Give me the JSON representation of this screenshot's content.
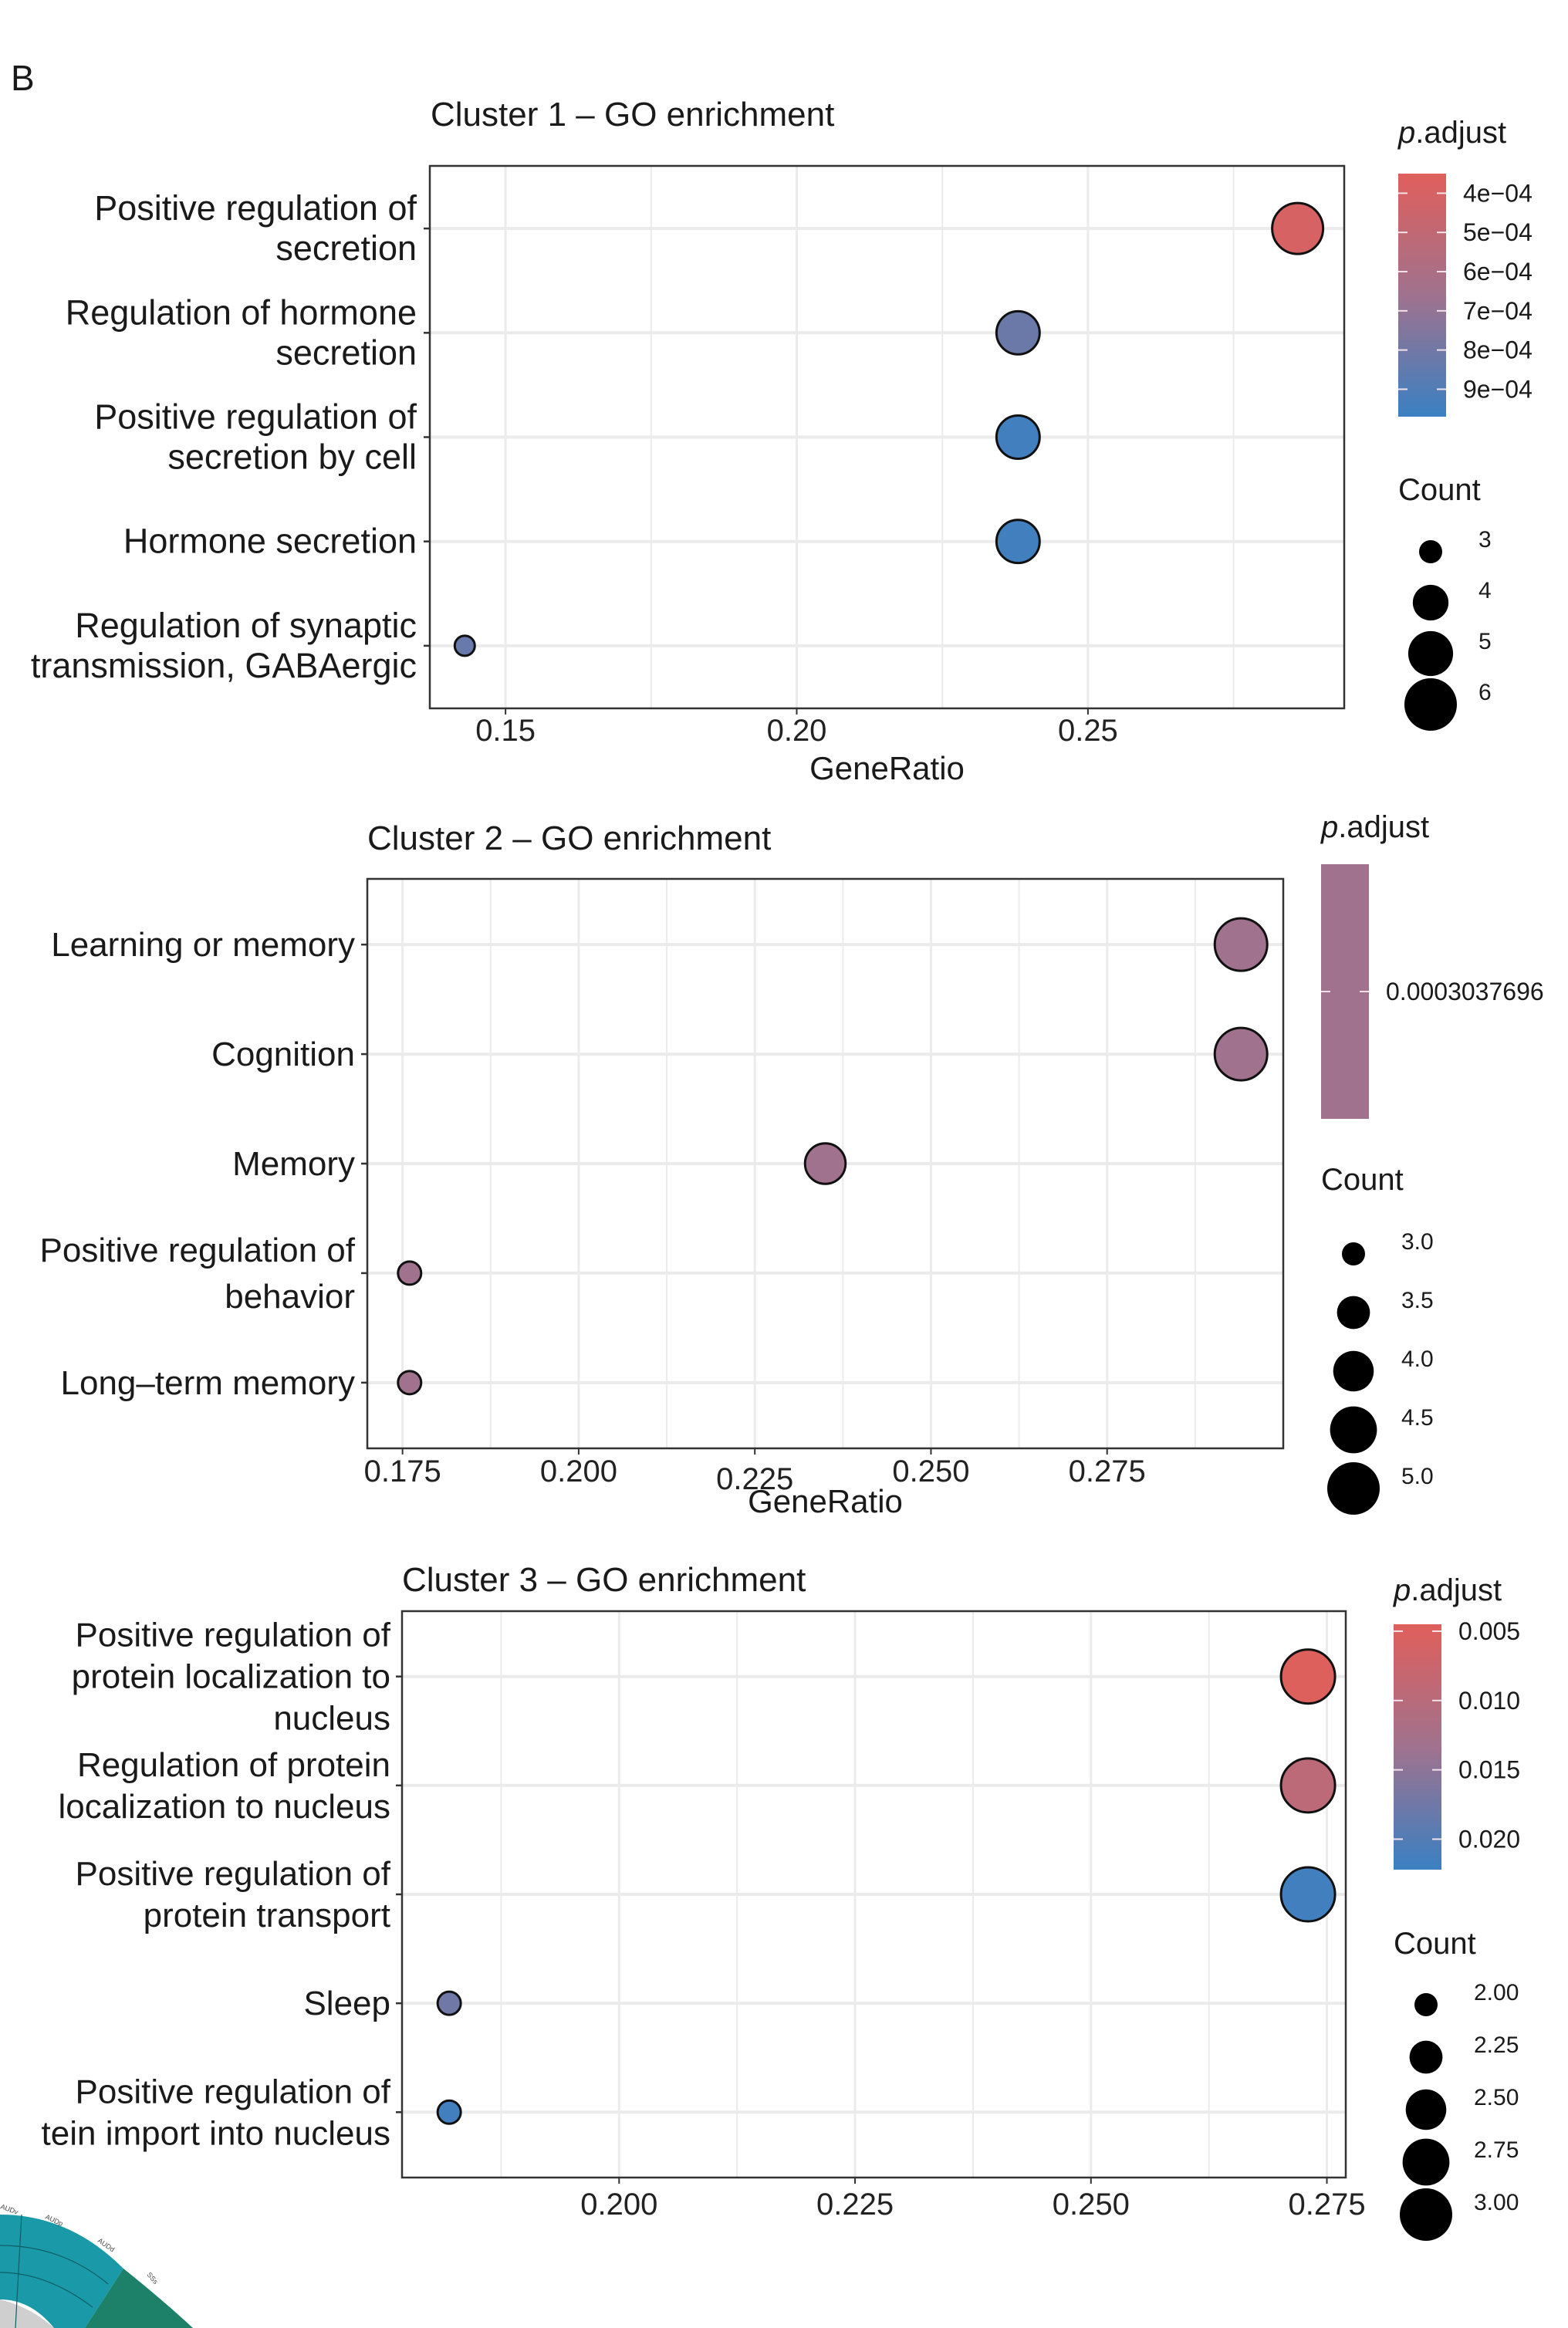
{
  "panel_label": "B",
  "chart_data": [
    {
      "type": "scatter",
      "subtype": "dotplot",
      "title": "Cluster 1 – GO enrichment",
      "xlabel": "GeneRatio",
      "ylabel": "",
      "xlim": [
        0.137,
        0.294
      ],
      "xticks": [
        0.15,
        0.2,
        0.25
      ],
      "xtick_labels": [
        "0.15",
        "0.20",
        "0.25"
      ],
      "grid": true,
      "categories": [
        "Positive regulation of\nsecretion",
        "Regulation of hormone\nsecretion",
        "Positive regulation of\nsecretion by cell",
        "Hormone secretion",
        "Regulation of synaptic\ntransmission, GABAergic"
      ],
      "points": [
        {
          "term": "Positive regulation of secretion",
          "gene_ratio": 0.286,
          "count": 6,
          "p_adjust": 0.0004
        },
        {
          "term": "Regulation of hormone secretion",
          "gene_ratio": 0.238,
          "count": 5,
          "p_adjust": 0.00082
        },
        {
          "term": "Positive regulation of secretion by cell",
          "gene_ratio": 0.238,
          "count": 5,
          "p_adjust": 0.00095
        },
        {
          "term": "Hormone secretion",
          "gene_ratio": 0.238,
          "count": 5,
          "p_adjust": 0.00095
        },
        {
          "term": "Regulation of synaptic transmission, GABAergic",
          "gene_ratio": 0.143,
          "count": 3,
          "p_adjust": 0.00083
        }
      ],
      "color_legend": {
        "title_italic": "p",
        "title_rest": ".adjust",
        "range": [
          0.00035,
          0.00097
        ],
        "ticks": [
          0.0004,
          0.0005,
          0.0006,
          0.0007,
          0.0008,
          0.0009
        ],
        "tick_labels": [
          "4e−04",
          "5e−04",
          "6e−04",
          "7e−04",
          "8e−04",
          "9e−04"
        ],
        "low_color": "#e05f5b",
        "high_color": "#3a80c2"
      },
      "size_legend": {
        "title": "Count",
        "values": [
          3,
          4,
          5,
          6
        ],
        "labels": [
          "3",
          "4",
          "5",
          "6"
        ],
        "range": [
          3,
          6
        ]
      },
      "legend_position": "right"
    },
    {
      "type": "scatter",
      "subtype": "dotplot",
      "title": "Cluster 2 – GO enrichment",
      "xlabel": "GeneRatio",
      "ylabel": "",
      "xlim": [
        0.17,
        0.3
      ],
      "xticks": [
        0.175,
        0.2,
        0.225,
        0.25,
        0.275
      ],
      "xtick_labels": [
        "0.175",
        "0.200",
        "0.225",
        "0.250",
        "0.275"
      ],
      "grid": true,
      "categories": [
        "Learning or memory",
        "Cognition",
        "Memory",
        "Positive regulation of\nbehavior",
        "Long–term memory"
      ],
      "points": [
        {
          "term": "Learning or memory",
          "gene_ratio": 0.294,
          "count": 5,
          "p_adjust": 0.0003037696
        },
        {
          "term": "Cognition",
          "gene_ratio": 0.294,
          "count": 5,
          "p_adjust": 0.0003037696
        },
        {
          "term": "Memory",
          "gene_ratio": 0.235,
          "count": 4,
          "p_adjust": 0.0003037696
        },
        {
          "term": "Positive regulation of behavior",
          "gene_ratio": 0.176,
          "count": 3,
          "p_adjust": 0.0003037696
        },
        {
          "term": "Long-term memory",
          "gene_ratio": 0.176,
          "count": 3,
          "p_adjust": 0.0003037696
        }
      ],
      "color_legend": {
        "title_italic": "p",
        "title_rest": ".adjust",
        "ticks": [
          0.0003037696
        ],
        "tick_labels": [
          "0.0003037696"
        ],
        "single_color": "#a0728e"
      },
      "size_legend": {
        "title": "Count",
        "values": [
          3.0,
          3.5,
          4.0,
          4.5,
          5.0
        ],
        "labels": [
          "3.0",
          "3.5",
          "4.0",
          "4.5",
          "5.0"
        ],
        "range": [
          3,
          5
        ]
      },
      "legend_position": "right"
    },
    {
      "type": "scatter",
      "subtype": "dotplot",
      "title": "Cluster 3 – GO enrichment",
      "xlabel": "",
      "ylabel": "",
      "xlim": [
        0.177,
        0.277
      ],
      "xticks": [
        0.2,
        0.225,
        0.25,
        0.275
      ],
      "xtick_labels": [
        "0.200",
        "0.225",
        "0.250",
        "0.275"
      ],
      "grid": true,
      "categories": [
        "Positive regulation of\nprotein localization to\nnucleus",
        "Regulation of protein\nlocalization to nucleus",
        "Positive regulation of\nprotein transport",
        "Sleep",
        "Positive regulation of\ntein import into nucleus"
      ],
      "points": [
        {
          "term": "Positive regulation of protein localization to nucleus",
          "gene_ratio": 0.273,
          "count": 3,
          "p_adjust": 0.0048
        },
        {
          "term": "Regulation of protein localization to nucleus",
          "gene_ratio": 0.273,
          "count": 3,
          "p_adjust": 0.0095
        },
        {
          "term": "Positive regulation of protein transport",
          "gene_ratio": 0.273,
          "count": 3,
          "p_adjust": 0.0215
        },
        {
          "term": "Sleep",
          "gene_ratio": 0.182,
          "count": 2,
          "p_adjust": 0.0175
        },
        {
          "term": "Positive regulation of protein import into nucleus",
          "gene_ratio": 0.182,
          "count": 2,
          "p_adjust": 0.0215
        }
      ],
      "color_legend": {
        "title_italic": "p",
        "title_rest": ".adjust",
        "range": [
          0.0045,
          0.0222
        ],
        "ticks": [
          0.005,
          0.01,
          0.015,
          0.02
        ],
        "tick_labels": [
          "0.005",
          "0.010",
          "0.015",
          "0.020"
        ],
        "low_color": "#e05f5b",
        "high_color": "#3a80c2"
      },
      "size_legend": {
        "title": "Count",
        "values": [
          2.0,
          2.25,
          2.5,
          2.75,
          3.0
        ],
        "labels": [
          "2.00",
          "2.25",
          "2.50",
          "2.75",
          "3.00"
        ],
        "range": [
          2,
          3
        ]
      },
      "legend_position": "right"
    }
  ],
  "background_figure": {
    "labels": [
      "AUDv",
      "AUDp",
      "AUDd",
      "SSs"
    ],
    "colors": [
      "#1a9aa8",
      "#1d8068",
      "#cfcfcf"
    ]
  }
}
